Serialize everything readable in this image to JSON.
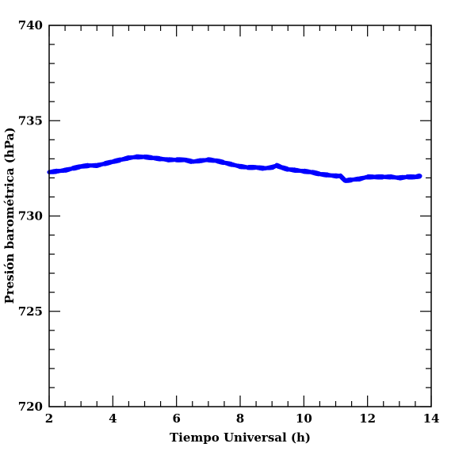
{
  "chart_data": {
    "type": "scatter",
    "title": "",
    "xlabel": "Tiempo Universal (h)",
    "ylabel": "Presión barométrica (hPa)",
    "xlim": [
      2,
      14
    ],
    "ylim": [
      720,
      740
    ],
    "xticks": [
      2,
      4,
      6,
      8,
      10,
      12,
      14
    ],
    "yticks": [
      720,
      725,
      730,
      735,
      740
    ],
    "x_minor_step": 0.5,
    "y_minor_step": 1,
    "grid": false,
    "marker_color": "#0000ff",
    "series": [
      {
        "x": [
          2.0,
          2.25,
          2.5,
          2.75,
          3.0,
          3.25,
          3.5,
          3.75,
          4.0,
          4.25,
          4.5,
          4.75,
          5.0,
          5.25,
          5.5,
          5.75,
          6.0,
          6.25,
          6.5,
          6.75,
          7.0,
          7.25,
          7.5,
          7.75,
          8.0,
          8.25,
          8.5,
          8.75,
          9.0,
          9.15,
          9.3,
          9.5,
          9.75,
          10.0,
          10.25,
          10.5,
          10.75,
          11.0,
          11.15,
          11.3,
          11.5,
          11.75,
          12.0,
          12.25,
          12.5,
          12.75,
          13.0,
          13.25,
          13.5,
          13.65
        ],
        "y": [
          732.3,
          732.35,
          732.4,
          732.5,
          732.6,
          732.65,
          732.65,
          732.75,
          732.85,
          732.95,
          733.05,
          733.1,
          733.1,
          733.05,
          733.0,
          732.95,
          732.95,
          732.95,
          732.85,
          732.9,
          732.95,
          732.9,
          732.8,
          732.7,
          732.6,
          732.55,
          732.55,
          732.5,
          732.55,
          732.65,
          732.55,
          732.45,
          732.4,
          732.35,
          732.3,
          732.2,
          732.15,
          732.1,
          732.1,
          731.85,
          731.9,
          731.95,
          732.05,
          732.05,
          732.05,
          732.05,
          732.0,
          732.05,
          732.05,
          732.1
        ]
      }
    ]
  }
}
